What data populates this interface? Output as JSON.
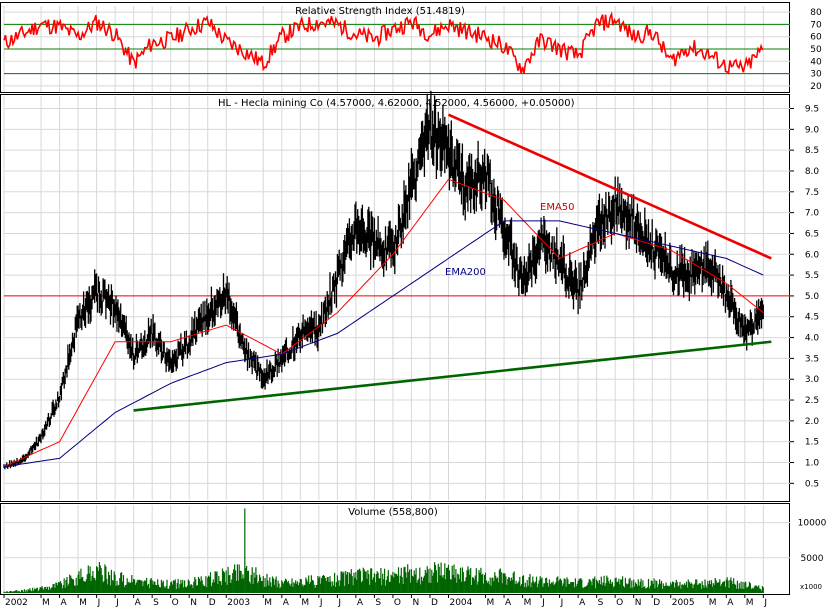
{
  "colors": {
    "panel_border": "#000000",
    "gridline": "#d8d8d8",
    "rsi_line": "#ff0000",
    "rsi_bands": "#008000",
    "price_bars": "#000000",
    "ema50": "#ff0000",
    "ema200": "#000080",
    "trend_upper": "#ee0000",
    "trend_lower": "#006400",
    "ref_line": "#ff0000",
    "volume_bars": "#006400"
  },
  "chart_data": [
    {
      "type": "line",
      "title": "Relative Strength Index (51.4819)",
      "ylim": [
        15,
        85
      ],
      "yticks": [
        20,
        30,
        40,
        50,
        60,
        70,
        80
      ],
      "bands": [
        30,
        50,
        70
      ],
      "series": [
        {
          "name": "",
          "x": [
            "2002-01",
            "2002-02",
            "2002-03",
            "2002-04",
            "2002-05",
            "2002-06",
            "2002-07",
            "2002-08",
            "2002-09",
            "2002-10",
            "2002-11",
            "2002-12",
            "2003-01",
            "2003-02",
            "2003-03",
            "2003-04",
            "2003-05",
            "2003-06",
            "2003-07",
            "2003-08",
            "2003-09",
            "2003-10",
            "2003-11",
            "2003-12",
            "2004-01",
            "2004-02",
            "2004-03",
            "2004-04",
            "2004-05",
            "2004-06",
            "2004-07",
            "2004-08",
            "2004-09",
            "2004-10",
            "2004-11",
            "2004-12",
            "2005-01",
            "2005-02",
            "2005-03",
            "2005-04",
            "2005-05",
            "2005-06"
          ],
          "values": [
            55,
            62,
            70,
            68,
            60,
            72,
            62,
            38,
            55,
            58,
            66,
            72,
            56,
            48,
            38,
            60,
            68,
            72,
            70,
            62,
            58,
            66,
            72,
            62,
            70,
            64,
            60,
            52,
            34,
            58,
            50,
            44,
            70,
            74,
            60,
            64,
            40,
            52,
            46,
            36,
            34,
            50
          ]
        }
      ]
    },
    {
      "type": "line",
      "title": "HL - Hecla mining Co (4.57000, 4.62000, 4.52000, 4.56000, +0.05000)",
      "ylim": [
        0.1,
        9.8
      ],
      "yticks": [
        "0.5",
        "1.0",
        "1.5",
        "2.0",
        "2.5",
        "3.0",
        "3.5",
        "4.0",
        "4.5",
        "5.0",
        "5.5",
        "6.0",
        "6.5",
        "7.0",
        "7.5",
        "8.0",
        "8.5",
        "9.0",
        "9.5"
      ],
      "series": [
        {
          "name": "",
          "x": [
            "2002-01",
            "2002-02",
            "2002-03",
            "2002-04",
            "2002-05",
            "2002-06",
            "2002-07",
            "2002-08",
            "2002-09",
            "2002-10",
            "2002-11",
            "2002-12",
            "2003-01",
            "2003-02",
            "2003-03",
            "2003-04",
            "2003-05",
            "2003-06",
            "2003-07",
            "2003-08",
            "2003-09",
            "2003-10",
            "2003-11",
            "2003-12",
            "2004-01",
            "2004-02",
            "2004-03",
            "2004-04",
            "2004-05",
            "2004-06",
            "2004-07",
            "2004-08",
            "2004-09",
            "2004-10",
            "2004-11",
            "2004-12",
            "2005-01",
            "2005-02",
            "2005-03",
            "2005-04",
            "2005-05",
            "2005-06"
          ],
          "values": [
            0.9,
            1.05,
            1.6,
            2.6,
            4.4,
            5.1,
            4.7,
            3.6,
            4.1,
            3.4,
            3.9,
            4.6,
            5.1,
            3.7,
            3.0,
            3.5,
            4.1,
            4.2,
            5.4,
            6.8,
            6.3,
            6.1,
            7.6,
            9.0,
            8.4,
            7.6,
            8.0,
            6.6,
            5.3,
            6.3,
            5.9,
            5.1,
            6.6,
            7.2,
            6.8,
            6.2,
            5.6,
            5.5,
            5.8,
            5.0,
            4.1,
            4.56
          ]
        },
        {
          "name": "EMA50",
          "x": [
            "2002-01",
            "2002-04",
            "2002-07",
            "2002-10",
            "2003-01",
            "2003-04",
            "2003-07",
            "2003-10",
            "2004-01",
            "2004-04",
            "2004-07",
            "2004-10",
            "2005-01",
            "2005-04",
            "2005-06"
          ],
          "values": [
            0.9,
            1.5,
            3.9,
            3.9,
            4.3,
            3.6,
            4.6,
            6.0,
            7.8,
            7.3,
            5.9,
            6.5,
            6.1,
            5.3,
            4.6
          ]
        },
        {
          "name": "EMA200",
          "x": [
            "2002-01",
            "2002-04",
            "2002-07",
            "2002-10",
            "2003-01",
            "2003-04",
            "2003-07",
            "2003-10",
            "2004-01",
            "2004-04",
            "2004-07",
            "2004-10",
            "2005-01",
            "2005-04",
            "2005-06"
          ],
          "values": [
            0.9,
            1.1,
            2.2,
            2.9,
            3.4,
            3.6,
            4.1,
            5.0,
            5.9,
            6.8,
            6.8,
            6.5,
            6.2,
            5.9,
            5.5
          ]
        }
      ],
      "reference_line": 5.0,
      "trendlines": [
        {
          "from": [
            "2004-01",
            9.35
          ],
          "to": [
            "2005-06",
            5.9
          ]
        },
        {
          "from": [
            "2002-08",
            2.25
          ],
          "to": [
            "2005-06",
            3.9
          ]
        }
      ]
    },
    {
      "type": "bar",
      "title": "Volume (558,800)",
      "unit": "x1000",
      "ylim": [
        0,
        12500
      ],
      "yticks": [
        "5000",
        "10000"
      ],
      "x": [
        "2002-01",
        "2002-02",
        "2002-03",
        "2002-04",
        "2002-05",
        "2002-06",
        "2002-07",
        "2002-08",
        "2002-09",
        "2002-10",
        "2002-11",
        "2002-12",
        "2003-01",
        "2003-02",
        "2003-03",
        "2003-04",
        "2003-05",
        "2003-06",
        "2003-07",
        "2003-08",
        "2003-09",
        "2003-10",
        "2003-11",
        "2003-12",
        "2004-01",
        "2004-02",
        "2004-03",
        "2004-04",
        "2004-05",
        "2004-06",
        "2004-07",
        "2004-08",
        "2004-09",
        "2004-10",
        "2004-11",
        "2004-12",
        "2005-01",
        "2005-02",
        "2005-03",
        "2005-04",
        "2005-05",
        "2005-06"
      ],
      "values": [
        200,
        400,
        800,
        1500,
        2600,
        3800,
        2600,
        2000,
        1800,
        1500,
        1700,
        2200,
        3200,
        12000,
        2400,
        1800,
        2000,
        2100,
        2500,
        3000,
        2800,
        3000,
        3400,
        3500,
        4000,
        3200,
        2900,
        2800,
        2400,
        2000,
        1900,
        1700,
        1900,
        2100,
        1900,
        1700,
        1500,
        1600,
        1700,
        1900,
        1500,
        800
      ]
    }
  ],
  "x_axis": {
    "labels": [
      "2002",
      "M",
      "A",
      "M",
      "J",
      "J",
      "A",
      "S",
      "O",
      "N",
      "D",
      "2003",
      "M",
      "A",
      "M",
      "J",
      "J",
      "A",
      "S",
      "O",
      "N",
      "D",
      "2004",
      "M",
      "A",
      "M",
      "J",
      "J",
      "A",
      "S",
      "O",
      "N",
      "D",
      "2005",
      "M",
      "A",
      "M",
      "J"
    ],
    "label_months": [
      "2002-01",
      "2002-03",
      "2002-04",
      "2002-05",
      "2002-06",
      "2002-07",
      "2002-08",
      "2002-09",
      "2002-10",
      "2002-11",
      "2002-12",
      "2003-01",
      "2003-03",
      "2003-04",
      "2003-05",
      "2003-06",
      "2003-07",
      "2003-08",
      "2003-09",
      "2003-10",
      "2003-11",
      "2003-12",
      "2004-01",
      "2004-03",
      "2004-04",
      "2004-05",
      "2004-06",
      "2004-07",
      "2004-08",
      "2004-09",
      "2004-10",
      "2004-11",
      "2004-12",
      "2005-01",
      "2005-03",
      "2005-04",
      "2005-05",
      "2005-06"
    ]
  }
}
